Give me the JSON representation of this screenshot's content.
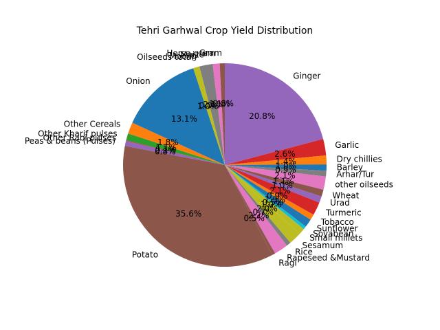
{
  "chart_data": {
    "type": "pie",
    "title": "Tehri Garhwal Crop Yield Distribution",
    "start_angle_deg": 90,
    "direction": "clockwise",
    "autopct_format": "%.1f%%",
    "slices": [
      {
        "label": "Ginger",
        "percent": 20.8,
        "color": "#9467bd"
      },
      {
        "label": "Garlic",
        "percent": 2.6,
        "color": "#d62728"
      },
      {
        "label": "Dry chillies",
        "percent": 1.4,
        "color": "#ff7f0e"
      },
      {
        "label": "Barley",
        "percent": 1.0,
        "color": "#1f77b4"
      },
      {
        "label": "Arhar/Tur",
        "percent": 0.9,
        "color": "#7f7f7f"
      },
      {
        "label": "other oilseeds",
        "percent": 2.1,
        "color": "#e377c2"
      },
      {
        "label": "Wheat",
        "percent": 1.1,
        "color": "#8c564b"
      },
      {
        "label": "Urad",
        "percent": 1.0,
        "color": "#9467bd"
      },
      {
        "label": "Turmeric",
        "percent": 2.1,
        "color": "#d62728"
      },
      {
        "label": "Tobacco",
        "percent": 0.9,
        "color": "#ff7f0e"
      },
      {
        "label": "Sunflower",
        "percent": 1.3,
        "color": "#1f77b4"
      },
      {
        "label": "Soyabean",
        "percent": 0.5,
        "color": "#17becf"
      },
      {
        "label": "Small millets",
        "percent": 1.0,
        "color": "#bcbd22"
      },
      {
        "label": "Sesamum",
        "percent": 2.0,
        "color": "#bcbd22"
      },
      {
        "label": "Rice",
        "percent": 0.7,
        "color": "#7f7f7f"
      },
      {
        "label": "Rapeseed &Mustard",
        "percent": 2.2,
        "color": "#e377c2"
      },
      {
        "label": "Ragi",
        "percent": 0.5,
        "color": "#8c564b"
      },
      {
        "label": "Potato",
        "percent": 35.6,
        "color": "#8c564b"
      },
      {
        "label": "Peas & beans (Pulses)",
        "percent": 0.8,
        "color": "#9467bd"
      },
      {
        "label": "Other Rabi pulses",
        "percent": 0.1,
        "color": "#d62728"
      },
      {
        "label": "Other Kharif pulses",
        "percent": 1.1,
        "color": "#2ca02c"
      },
      {
        "label": "Other Cereals",
        "percent": 1.8,
        "color": "#ff7f0e"
      },
      {
        "label": "Onion",
        "percent": 13.1,
        "color": "#1f77b4"
      },
      {
        "label": "Oilseeds total",
        "percent": 1.0,
        "color": "#bcbd22"
      },
      {
        "label": "Moong",
        "percent": 0.0,
        "color": "#17becf"
      },
      {
        "label": "Maize",
        "percent": 2.1,
        "color": "#7f7f7f"
      },
      {
        "label": "Horse-gram",
        "percent": 1.1,
        "color": "#e377c2"
      },
      {
        "label": "Gram",
        "percent": 0.8,
        "color": "#8c564b"
      }
    ]
  }
}
